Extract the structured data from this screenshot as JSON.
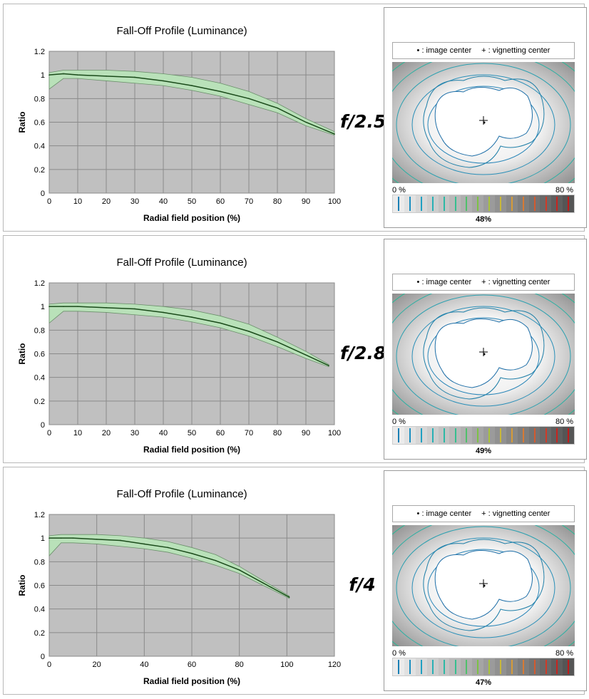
{
  "legend": {
    "image_center": "• : image center",
    "vignetting_center": "+ : vignetting center"
  },
  "scale": {
    "min_label": "0 %",
    "max_label": "80 %",
    "colors": [
      "#1a7fb5",
      "#1b8fc0",
      "#20a0c2",
      "#28b0b5",
      "#2bb9a5",
      "#35bf8f",
      "#4fc06a",
      "#7cc244",
      "#a8c23a",
      "#c9b83a",
      "#d69b38",
      "#d77a34",
      "#d45a2e",
      "#cf3a27",
      "#c9251f",
      "#c21919"
    ]
  },
  "rows": [
    {
      "f_stop": "f/2.5",
      "vignetting_pct": "48%",
      "chart_data": {
        "type": "line",
        "title": "Fall-Off Profile (Luminance)",
        "xlabel": "Radial field position (%)",
        "ylabel": "Ratio",
        "xlim": [
          0,
          100
        ],
        "ylim": [
          0,
          1.2
        ],
        "xticks": [
          "0",
          "10",
          "20",
          "30",
          "40",
          "50",
          "60",
          "70",
          "80",
          "90",
          "100"
        ],
        "yticks": [
          "0",
          "0.2",
          "0.4",
          "0.6",
          "0.8",
          "1",
          "1.2"
        ],
        "series": [
          {
            "x": [
              0,
              5,
              10,
              20,
              30,
              40,
              50,
              60,
              70,
              80,
              90,
              100
            ],
            "y": [
              1.0,
              1.01,
              1.0,
              0.99,
              0.98,
              0.95,
              0.91,
              0.86,
              0.8,
              0.72,
              0.6,
              0.5
            ]
          }
        ],
        "band_upper": [
          1.02,
          1.04,
          1.04,
          1.04,
          1.03,
          1.01,
          0.98,
          0.93,
          0.86,
          0.76,
          0.63,
          0.52
        ],
        "band_lower": [
          0.88,
          0.97,
          0.97,
          0.95,
          0.93,
          0.91,
          0.87,
          0.82,
          0.75,
          0.68,
          0.57,
          0.49
        ],
        "grid": true
      }
    },
    {
      "f_stop": "f/2.8",
      "vignetting_pct": "49%",
      "chart_data": {
        "type": "line",
        "title": "Fall-Off Profile (Luminance)",
        "xlabel": "Radial field position (%)",
        "ylabel": "Ratio",
        "xlim": [
          0,
          100
        ],
        "ylim": [
          0,
          1.2
        ],
        "xticks": [
          "0",
          "10",
          "20",
          "30",
          "40",
          "50",
          "60",
          "70",
          "80",
          "90",
          "100"
        ],
        "yticks": [
          "0",
          "0.2",
          "0.4",
          "0.6",
          "0.8",
          "1",
          "1.2"
        ],
        "series": [
          {
            "x": [
              0,
              5,
              10,
              20,
              30,
              40,
              50,
              60,
              70,
              80,
              90,
              98
            ],
            "y": [
              1.0,
              1.0,
              1.0,
              0.99,
              0.98,
              0.95,
              0.91,
              0.86,
              0.79,
              0.7,
              0.59,
              0.5
            ]
          }
        ],
        "band_upper": [
          1.02,
          1.03,
          1.03,
          1.03,
          1.02,
          1.0,
          0.97,
          0.92,
          0.85,
          0.74,
          0.62,
          0.51
        ],
        "band_lower": [
          0.86,
          0.96,
          0.96,
          0.95,
          0.93,
          0.91,
          0.87,
          0.82,
          0.75,
          0.66,
          0.56,
          0.49
        ],
        "grid": true
      }
    },
    {
      "f_stop": "f/4",
      "vignetting_pct": "47%",
      "chart_data": {
        "type": "line",
        "title": "Fall-Off Profile (Luminance)",
        "xlabel": "Radial field position (%)",
        "ylabel": "Ratio",
        "xlim": [
          0,
          120
        ],
        "ylim": [
          0,
          1.2
        ],
        "xticks": [
          "0",
          "20",
          "40",
          "60",
          "80",
          "100",
          "120"
        ],
        "yticks": [
          "0",
          "0.2",
          "0.4",
          "0.6",
          "0.8",
          "1",
          "1.2"
        ],
        "series": [
          {
            "x": [
              0,
              5,
              10,
              20,
              30,
              40,
              50,
              60,
              70,
              80,
              90,
              101
            ],
            "y": [
              1.0,
              1.0,
              1.0,
              0.99,
              0.98,
              0.95,
              0.92,
              0.87,
              0.81,
              0.73,
              0.62,
              0.5
            ]
          }
        ],
        "band_upper": [
          1.02,
          1.03,
          1.03,
          1.03,
          1.02,
          1.0,
          0.97,
          0.92,
          0.86,
          0.76,
          0.64,
          0.51
        ],
        "band_lower": [
          0.85,
          0.96,
          0.96,
          0.95,
          0.93,
          0.91,
          0.88,
          0.83,
          0.77,
          0.7,
          0.6,
          0.49
        ],
        "grid": true
      }
    }
  ]
}
